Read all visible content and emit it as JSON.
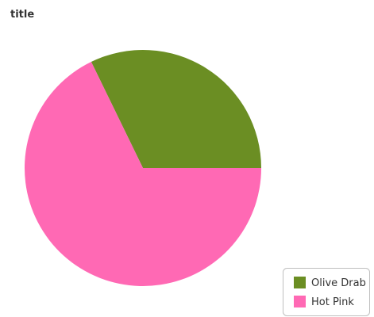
{
  "chart_data": {
    "type": "pie",
    "title": "title",
    "categories": [
      "Olive Drab",
      "Hot Pink"
    ],
    "values": [
      32.2,
      67.8
    ],
    "colors": [
      "#6b8e23",
      "#ff69b4"
    ],
    "legend_position": "bottom-right",
    "start_angle_deg": 0,
    "direction": "counterclockwise"
  }
}
